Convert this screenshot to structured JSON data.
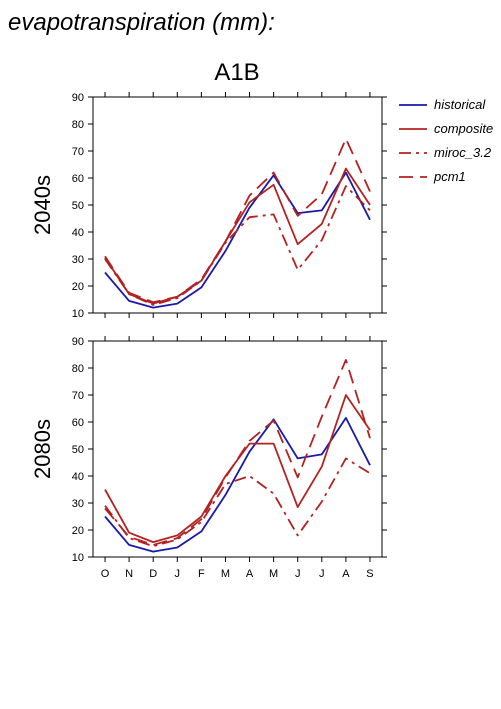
{
  "title": "evapotranspiration (mm):",
  "scenario": "A1B",
  "legend": [
    {
      "name": "historical",
      "color": "#1a1aaa",
      "dash": "solid"
    },
    {
      "name": "composite",
      "color": "#b22222",
      "dash": "solid"
    },
    {
      "name": "miroc_3.2",
      "color": "#b22222",
      "dash": "dashdot"
    },
    {
      "name": "pcm1",
      "color": "#b22222",
      "dash": "dashed"
    }
  ],
  "chart_data": [
    {
      "type": "line",
      "ylabel": "2040s",
      "x": [
        "O",
        "N",
        "D",
        "J",
        "F",
        "M",
        "A",
        "M",
        "J",
        "J",
        "A",
        "S"
      ],
      "ylim": [
        10,
        90
      ],
      "yticks": [
        "10",
        "20",
        "30",
        "40",
        "50",
        "60",
        "70",
        "80",
        "90"
      ],
      "series": [
        {
          "name": "historical",
          "values": [
            25,
            14.5,
            12,
            13.5,
            19.5,
            33,
            49,
            61,
            47,
            48,
            62,
            44.5
          ]
        },
        {
          "name": "composite",
          "values": [
            30.5,
            17,
            13.5,
            16,
            22,
            36.5,
            51,
            57.5,
            35.5,
            43,
            63.5,
            50
          ]
        },
        {
          "name": "miroc_3.2",
          "values": [
            30,
            17,
            13,
            15.5,
            22,
            36,
            45.5,
            46.5,
            26,
            37,
            57,
            48
          ]
        },
        {
          "name": "pcm1",
          "values": [
            31,
            17.5,
            14,
            16,
            22.5,
            36.5,
            53.5,
            62,
            46,
            54,
            74.5,
            55
          ]
        }
      ]
    },
    {
      "type": "line",
      "ylabel": "2080s",
      "x": [
        "O",
        "N",
        "D",
        "J",
        "F",
        "M",
        "A",
        "M",
        "J",
        "J",
        "A",
        "S"
      ],
      "ylim": [
        10,
        90
      ],
      "yticks": [
        "10",
        "20",
        "30",
        "40",
        "50",
        "60",
        "70",
        "80",
        "90"
      ],
      "series": [
        {
          "name": "historical",
          "values": [
            25,
            14.5,
            12,
            13.5,
            19.5,
            33,
            49,
            61,
            46.5,
            48,
            61.5,
            44
          ]
        },
        {
          "name": "composite",
          "values": [
            35,
            19,
            15.5,
            18,
            25,
            40,
            52,
            52,
            28.5,
            43.5,
            70,
            57
          ]
        },
        {
          "name": "miroc_3.2",
          "values": [
            29,
            17,
            14,
            16.5,
            23,
            37,
            40,
            33.5,
            18,
            30.5,
            46.5,
            41
          ]
        },
        {
          "name": "pcm1",
          "values": [
            28,
            17.5,
            14.5,
            17,
            24,
            39.5,
            53,
            60.5,
            39.5,
            62,
            83,
            54
          ]
        }
      ]
    }
  ]
}
